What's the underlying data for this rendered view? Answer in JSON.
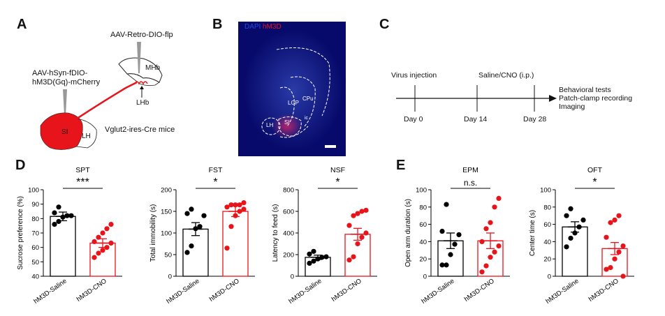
{
  "panels": {
    "A": "A",
    "B": "B",
    "C": "C",
    "D": "D",
    "E": "E"
  },
  "panelA": {
    "virus1": "AAV-Retro-DIO-flp",
    "virus2_line1": "AAV-hSyn-fDIO-",
    "virus2_line2": "hM3D(Gq)-mCherry",
    "region_mhb": "MHb",
    "region_lhb": "LHb",
    "region_si": "SI",
    "region_lh": "LH",
    "mouse": "Vglut2-ires-Cre mice"
  },
  "panelB": {
    "legend_dapi": "DAPI",
    "legend_hm3d": "hM3D",
    "region_cpu": "CPu",
    "region_lgp": "LGP",
    "region_lh": "LH",
    "region_si": "SI",
    "region_ic": "ic"
  },
  "panelC": {
    "event1": "Virus injection",
    "event2": "Saline/CNO (i.p.)",
    "day1": "Day 0",
    "day2": "Day 14",
    "day3": "Day 28",
    "outcome1": "Behavioral tests",
    "outcome2": "Patch-clamp recording",
    "outcome3": "Imaging"
  },
  "colors": {
    "saline": "#000000",
    "cno": "#e8141b",
    "axis": "#000000",
    "brain_bg": "#070a6a"
  },
  "chart_data": [
    {
      "type": "bar",
      "title": "SPT",
      "ylabel": "Sucrose preference (%)",
      "ylim": [
        40,
        100
      ],
      "yticks": [
        40,
        50,
        60,
        70,
        80,
        90,
        100
      ],
      "categories": [
        "hM3D-Saline",
        "hM3D-CNO"
      ],
      "values": [
        81.5,
        63
      ],
      "sem": [
        3,
        3
      ],
      "points": [
        [
          76,
          78,
          81,
          82,
          82,
          84,
          88
        ],
        [
          53,
          56,
          58,
          60,
          63,
          64,
          67,
          70,
          73,
          76
        ]
      ],
      "significance": "***"
    },
    {
      "type": "bar",
      "title": "FST",
      "ylabel": "Total immobility (s)",
      "ylim": [
        0,
        200
      ],
      "yticks": [
        0,
        50,
        100,
        150,
        200
      ],
      "categories": [
        "hM3D-Saline",
        "hM3D-CNO"
      ],
      "values": [
        109,
        150
      ],
      "sem": [
        15,
        12
      ],
      "points": [
        [
          55,
          70,
          110,
          115,
          140,
          145,
          155
        ],
        [
          65,
          115,
          140,
          150,
          155,
          160,
          165,
          165,
          165,
          170
        ]
      ],
      "significance": "*"
    },
    {
      "type": "bar",
      "title": "NSF",
      "ylabel": "Latency to feed (s)",
      "ylim": [
        0,
        800
      ],
      "yticks": [
        0,
        200,
        400,
        600,
        800
      ],
      "categories": [
        "hM3D-Saline",
        "hM3D-CNO"
      ],
      "values": [
        175,
        388
      ],
      "sem": [
        20,
        55
      ],
      "points": [
        [
          120,
          140,
          160,
          175,
          180,
          205,
          230
        ],
        [
          150,
          180,
          300,
          360,
          400,
          470,
          560,
          580,
          600,
          610
        ]
      ],
      "significance": "*"
    },
    {
      "type": "bar",
      "title": "EPM",
      "ylabel": "Open arm duration (s)",
      "ylim": [
        0,
        100
      ],
      "yticks": [
        0,
        20,
        40,
        60,
        80,
        100
      ],
      "categories": [
        "hM3D-Saline",
        "hM3D-CNO"
      ],
      "values": [
        41,
        41
      ],
      "sem": [
        9,
        9
      ],
      "points": [
        [
          13,
          13,
          25,
          37,
          48,
          52,
          83
        ],
        [
          5,
          12,
          22,
          28,
          35,
          40,
          55,
          62,
          80,
          90
        ]
      ],
      "significance": "n.s."
    },
    {
      "type": "bar",
      "title": "OFT",
      "ylabel": "Center time (s)",
      "ylim": [
        0,
        100
      ],
      "yticks": [
        0,
        20,
        40,
        60,
        80,
        100
      ],
      "categories": [
        "hM3D-Saline",
        "hM3D-CNO"
      ],
      "values": [
        57,
        32
      ],
      "sem": [
        6,
        7
      ],
      "points": [
        [
          34,
          44,
          50,
          57,
          65,
          70,
          78
        ],
        [
          8,
          10,
          20,
          28,
          35,
          45,
          62,
          65,
          70,
          0
        ]
      ],
      "significance": "*"
    }
  ]
}
